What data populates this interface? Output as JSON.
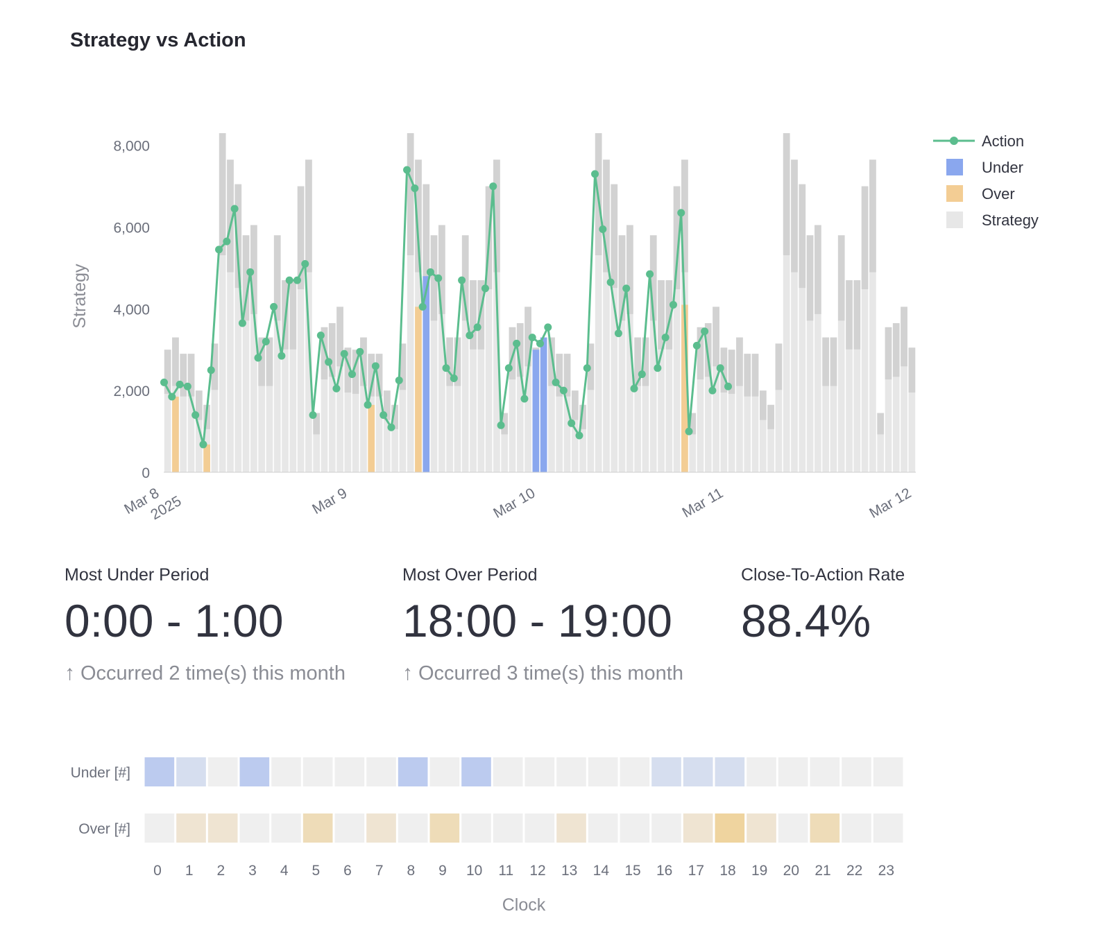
{
  "title": "Strategy vs Action",
  "colors": {
    "action": "#5bbd8e",
    "under": "#8aa7ee",
    "over": "#f3cd94",
    "strategy": "#e7e7e7",
    "strategy_dark": "#d2d2d2",
    "empty_cell": "#efefef"
  },
  "chart_data": [
    {
      "type": "bar",
      "ylabel": "Strategy",
      "ylim": [
        0,
        8200
      ],
      "y_ticks": [
        0,
        2000,
        4000,
        6000,
        8000
      ],
      "y_tick_labels": [
        "0",
        "2,000",
        "4,000",
        "6,000",
        "8,000"
      ],
      "x_range": [
        "2025-03-08 00:00",
        "2025-03-12 00:00"
      ],
      "x_ticks": [
        {
          "date": "2025-03-08",
          "label": [
            "Mar 8",
            "2025"
          ]
        },
        {
          "date": "2025-03-09",
          "label": [
            "Mar 9"
          ]
        },
        {
          "date": "2025-03-10",
          "label": [
            "Mar 10"
          ]
        },
        {
          "date": "2025-03-11",
          "label": [
            "Mar 11"
          ]
        },
        {
          "date": "2025-03-12",
          "label": [
            "Mar 12"
          ]
        }
      ],
      "legend": {
        "placement": "top-right",
        "entries": [
          {
            "name": "Action",
            "kind": "line"
          },
          {
            "name": "Under",
            "kind": "box"
          },
          {
            "name": "Over",
            "kind": "box"
          },
          {
            "name": "Strategy",
            "kind": "box"
          }
        ]
      },
      "strategy_hourly": [
        3000,
        3300,
        2900,
        2900,
        2000,
        1650,
        3150,
        8300,
        7650,
        7050,
        5800,
        6050,
        3300,
        3300,
        5800,
        4700,
        4700,
        7000,
        7650,
        1450,
        3550,
        3650,
        4050,
        3050
      ],
      "strategy_dark_range": [
        [
          0.38,
          0.3
        ],
        [
          0.38,
          0.3
        ],
        [
          0.38,
          0.3
        ],
        [
          0.38,
          0.3
        ],
        [
          0.38,
          0.3
        ],
        [
          0.38,
          0.3
        ],
        [
          0.38,
          0.3
        ],
        [
          0.38,
          0.3
        ],
        [
          0.38,
          0.3
        ],
        [
          0.38,
          0.3
        ],
        [
          0.38,
          0.3
        ],
        [
          0.38,
          0.3
        ]
      ],
      "action": [
        2200,
        1850,
        2150,
        2100,
        1400,
        680,
        2500,
        5450,
        5650,
        6450,
        3650,
        4900,
        2800,
        3200,
        4050,
        2850,
        4700,
        4700,
        5100,
        1400,
        3350,
        2700,
        2050,
        2900,
        2400,
        2950,
        1650,
        2600,
        1400,
        1100,
        2250,
        7400,
        6950,
        4050,
        4900,
        4750,
        2550,
        2300,
        4700,
        3350,
        3550,
        4500,
        7000,
        1150,
        2550,
        3150,
        1800,
        3300,
        3150,
        3550,
        2200,
        2000,
        1200,
        900,
        2550,
        7300,
        5950,
        4650,
        3400,
        4500,
        2050,
        2400,
        4850,
        2550,
        3300,
        4100,
        6350,
        1000,
        3100,
        3450,
        2000,
        2550,
        2100
      ],
      "under_bars": [
        {
          "hour_index": 33,
          "value": 4800
        },
        {
          "hour_index": 47,
          "value": 3000
        },
        {
          "hour_index": 48,
          "value": 3300
        }
      ],
      "over_bars": [
        {
          "hour_index": 1,
          "value": 1850
        },
        {
          "hour_index": 5,
          "value": 680
        },
        {
          "hour_index": 26,
          "value": 1650
        },
        {
          "hour_index": 32,
          "value": 4050
        },
        {
          "hour_index": 66,
          "value": 4100
        }
      ]
    },
    {
      "type": "heatmap",
      "xlabel": "Clock",
      "x_categories": [
        "0",
        "1",
        "2",
        "3",
        "4",
        "5",
        "6",
        "7",
        "8",
        "9",
        "10",
        "11",
        "12",
        "13",
        "14",
        "15",
        "16",
        "17",
        "18",
        "19",
        "20",
        "21",
        "22",
        "23"
      ],
      "rows": [
        {
          "label": "Under [#]",
          "kind": "under",
          "values": [
            2,
            1,
            0,
            2,
            0,
            0,
            0,
            0,
            2,
            0,
            2,
            0,
            0,
            0,
            0,
            0,
            1,
            1,
            1,
            0,
            0,
            0,
            0,
            0
          ]
        },
        {
          "label": "Over [#]",
          "kind": "over",
          "values": [
            0,
            1,
            1,
            0,
            0,
            2,
            0,
            1,
            0,
            2,
            0,
            0,
            0,
            1,
            0,
            0,
            0,
            1,
            3,
            1,
            0,
            2,
            0,
            0
          ]
        }
      ]
    }
  ],
  "metrics": [
    {
      "label": "Most Under Period",
      "value": "0:00 - 1:00",
      "delta": "Occurred 2 time(s) this month"
    },
    {
      "label": "Most Over Period",
      "value": "18:00 - 19:00",
      "delta": "Occurred 3 time(s) this month"
    },
    {
      "label": "Close-To-Action Rate",
      "value": "88.4%",
      "delta": ""
    }
  ]
}
